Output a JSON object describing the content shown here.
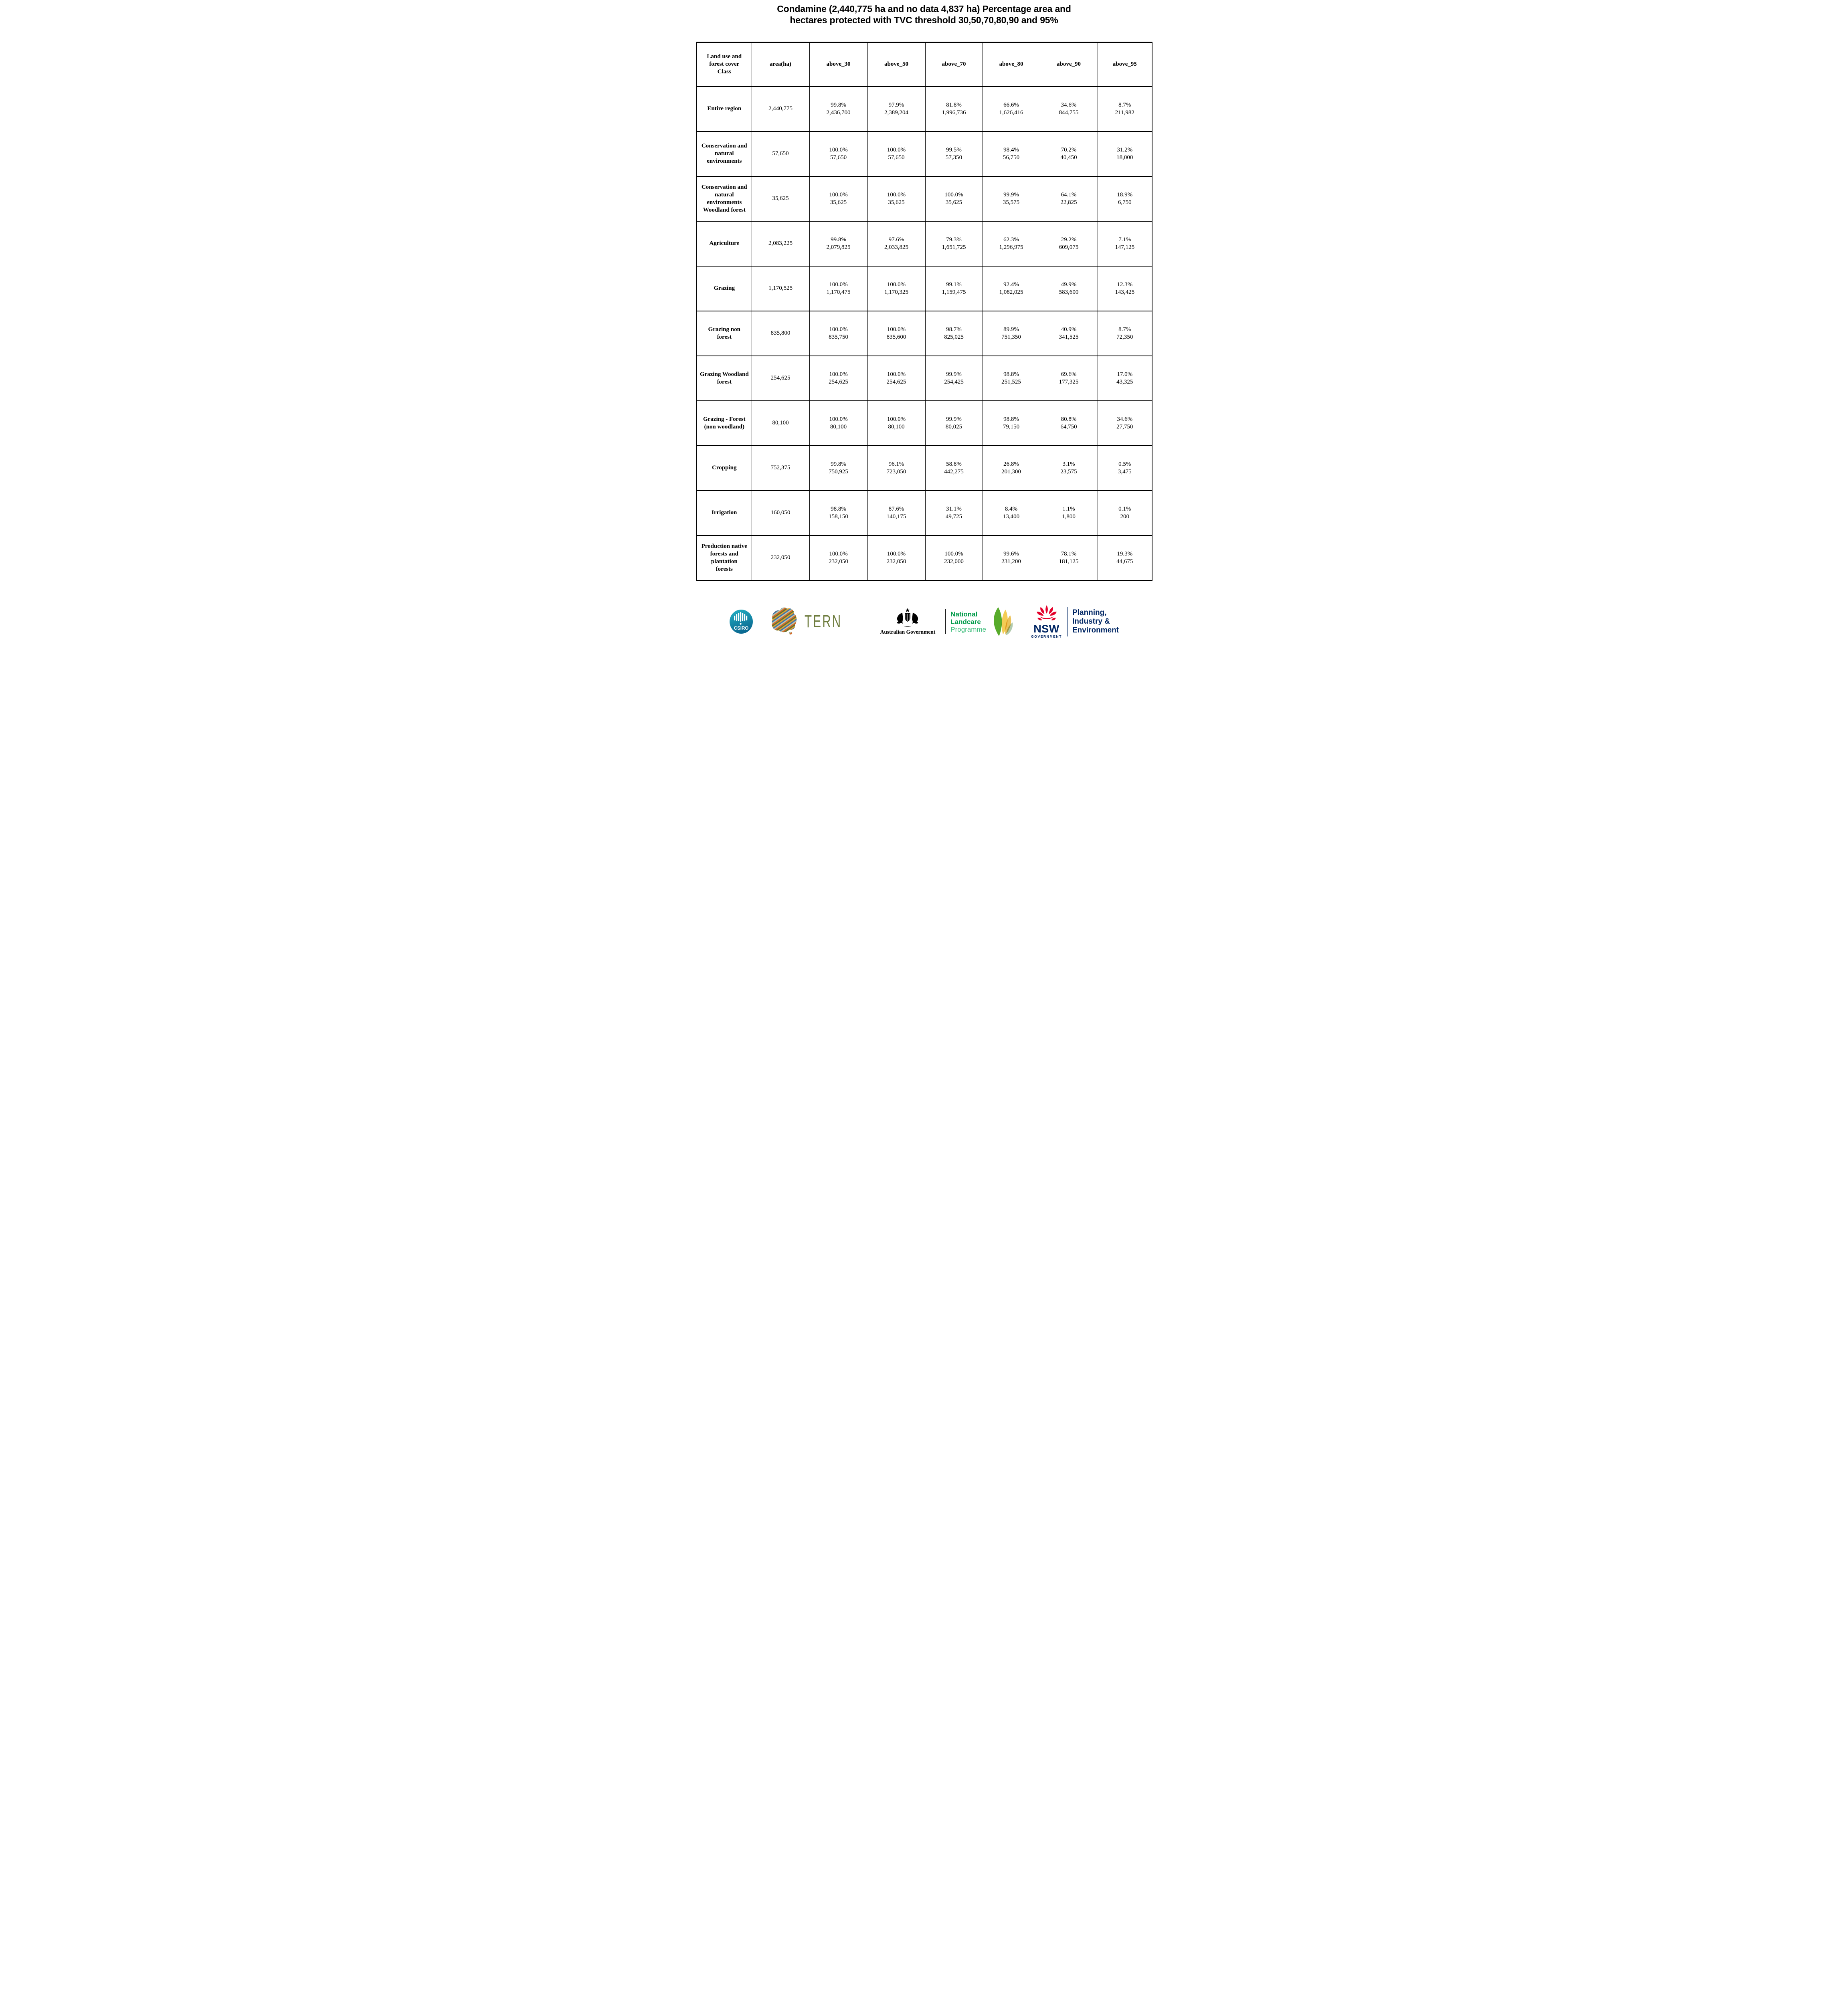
{
  "title": {
    "line1": "Condamine (2,440,775 ha and no data 4,837 ha) Percentage area and",
    "line2": "hectares protected with TVC threshold 30,50,70,80,90 and 95%"
  },
  "table": {
    "columns": [
      "Land use and\nforest cover\nClass",
      "area(ha)",
      "above_30",
      "above_50",
      "above_70",
      "above_80",
      "above_90",
      "above_95"
    ],
    "rows": [
      {
        "class": "Entire region",
        "area": "2,440,775",
        "cells": [
          {
            "pct": "99.8%",
            "ha": "2,436,700"
          },
          {
            "pct": "97.9%",
            "ha": "2,389,204"
          },
          {
            "pct": "81.8%",
            "ha": "1,996,736"
          },
          {
            "pct": "66.6%",
            "ha": "1,626,416"
          },
          {
            "pct": "34.6%",
            "ha": "844,755"
          },
          {
            "pct": "8.7%",
            "ha": "211,982"
          }
        ]
      },
      {
        "class": "Conservation and\nnatural\nenvironments",
        "area": "57,650",
        "cells": [
          {
            "pct": "100.0%",
            "ha": "57,650"
          },
          {
            "pct": "100.0%",
            "ha": "57,650"
          },
          {
            "pct": "99.5%",
            "ha": "57,350"
          },
          {
            "pct": "98.4%",
            "ha": "56,750"
          },
          {
            "pct": "70.2%",
            "ha": "40,450"
          },
          {
            "pct": "31.2%",
            "ha": "18,000"
          }
        ]
      },
      {
        "class": "Conservation and\nnatural\nenvironments\nWoodland forest",
        "area": "35,625",
        "cells": [
          {
            "pct": "100.0%",
            "ha": "35,625"
          },
          {
            "pct": "100.0%",
            "ha": "35,625"
          },
          {
            "pct": "100.0%",
            "ha": "35,625"
          },
          {
            "pct": "99.9%",
            "ha": "35,575"
          },
          {
            "pct": "64.1%",
            "ha": "22,825"
          },
          {
            "pct": "18.9%",
            "ha": "6,750"
          }
        ]
      },
      {
        "class": "Agriculture",
        "area": "2,083,225",
        "cells": [
          {
            "pct": "99.8%",
            "ha": "2,079,825"
          },
          {
            "pct": "97.6%",
            "ha": "2,033,825"
          },
          {
            "pct": "79.3%",
            "ha": "1,651,725"
          },
          {
            "pct": "62.3%",
            "ha": "1,296,975"
          },
          {
            "pct": "29.2%",
            "ha": "609,075"
          },
          {
            "pct": "7.1%",
            "ha": "147,125"
          }
        ]
      },
      {
        "class": "Grazing",
        "area": "1,170,525",
        "cells": [
          {
            "pct": "100.0%",
            "ha": "1,170,475"
          },
          {
            "pct": "100.0%",
            "ha": "1,170,325"
          },
          {
            "pct": "99.1%",
            "ha": "1,159,475"
          },
          {
            "pct": "92.4%",
            "ha": "1,082,025"
          },
          {
            "pct": "49.9%",
            "ha": "583,600"
          },
          {
            "pct": "12.3%",
            "ha": "143,425"
          }
        ]
      },
      {
        "class": "Grazing non\nforest",
        "area": "835,800",
        "cells": [
          {
            "pct": "100.0%",
            "ha": "835,750"
          },
          {
            "pct": "100.0%",
            "ha": "835,600"
          },
          {
            "pct": "98.7%",
            "ha": "825,025"
          },
          {
            "pct": "89.9%",
            "ha": "751,350"
          },
          {
            "pct": "40.9%",
            "ha": "341,525"
          },
          {
            "pct": "8.7%",
            "ha": "72,350"
          }
        ]
      },
      {
        "class": "Grazing Woodland\nforest",
        "area": "254,625",
        "cells": [
          {
            "pct": "100.0%",
            "ha": "254,625"
          },
          {
            "pct": "100.0%",
            "ha": "254,625"
          },
          {
            "pct": "99.9%",
            "ha": "254,425"
          },
          {
            "pct": "98.8%",
            "ha": "251,525"
          },
          {
            "pct": "69.6%",
            "ha": "177,325"
          },
          {
            "pct": "17.0%",
            "ha": "43,325"
          }
        ]
      },
      {
        "class": "Grazing - Forest\n(non woodland)",
        "area": "80,100",
        "cells": [
          {
            "pct": "100.0%",
            "ha": "80,100"
          },
          {
            "pct": "100.0%",
            "ha": "80,100"
          },
          {
            "pct": "99.9%",
            "ha": "80,025"
          },
          {
            "pct": "98.8%",
            "ha": "79,150"
          },
          {
            "pct": "80.8%",
            "ha": "64,750"
          },
          {
            "pct": "34.6%",
            "ha": "27,750"
          }
        ]
      },
      {
        "class": "Cropping",
        "area": "752,375",
        "cells": [
          {
            "pct": "99.8%",
            "ha": "750,925"
          },
          {
            "pct": "96.1%",
            "ha": "723,050"
          },
          {
            "pct": "58.8%",
            "ha": "442,275"
          },
          {
            "pct": "26.8%",
            "ha": "201,300"
          },
          {
            "pct": "3.1%",
            "ha": "23,575"
          },
          {
            "pct": "0.5%",
            "ha": "3,475"
          }
        ]
      },
      {
        "class": "Irrigation",
        "area": "160,050",
        "cells": [
          {
            "pct": "98.8%",
            "ha": "158,150"
          },
          {
            "pct": "87.6%",
            "ha": "140,175"
          },
          {
            "pct": "31.1%",
            "ha": "49,725"
          },
          {
            "pct": "8.4%",
            "ha": "13,400"
          },
          {
            "pct": "1.1%",
            "ha": "1,800"
          },
          {
            "pct": "0.1%",
            "ha": "200"
          }
        ]
      },
      {
        "class": "Production native\nforests and\nplantation\nforests",
        "area": "232,050",
        "cells": [
          {
            "pct": "100.0%",
            "ha": "232,050"
          },
          {
            "pct": "100.0%",
            "ha": "232,050"
          },
          {
            "pct": "100.0%",
            "ha": "232,000"
          },
          {
            "pct": "99.6%",
            "ha": "231,200"
          },
          {
            "pct": "78.1%",
            "ha": "181,125"
          },
          {
            "pct": "19.3%",
            "ha": "44,675"
          }
        ]
      }
    ]
  },
  "logos": {
    "csiro": {
      "label": "CSIRO"
    },
    "tern": {
      "label": "TERN",
      "stripe_colors": [
        "#d96a2b",
        "#5f7334",
        "#e0a32e",
        "#4472a8",
        "#b8c4ab"
      ]
    },
    "aus_gov": {
      "label": "Australian Government"
    },
    "landcare": {
      "line1": "National",
      "line2": "Landcare",
      "line3": "Programme"
    },
    "nsw": {
      "acronym": "NSW",
      "label": "GOVERNMENT"
    },
    "planning": {
      "line1": "Planning,",
      "line2": "Industry &",
      "line3": "Environment"
    }
  },
  "colors": {
    "navy": "#002664",
    "nsw_red": "#e4002b",
    "tern_olive": "#6e7c3e",
    "landcare_green": "#009a49",
    "landcare_light": "#3fbe7c",
    "csiro_top": "#22b2c5",
    "csiro_bottom": "#0b6a92",
    "leaf_green": "#57ab2a",
    "leaf_yellow": "#f3c337",
    "leaf_amber": "#e8b73c",
    "leaf_sage": "#a9c4a4"
  }
}
